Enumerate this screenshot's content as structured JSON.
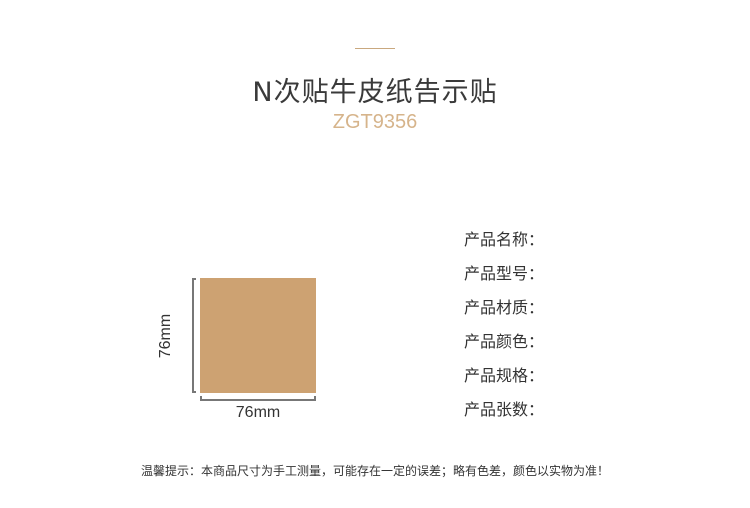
{
  "header": {
    "title": "N次贴牛皮纸告示贴",
    "model": "ZGT9356"
  },
  "product": {
    "color": "#cda272",
    "width_label": "76mm",
    "height_label": "76mm"
  },
  "specs": [
    "产品名称：",
    "产品型号：",
    "产品材质：",
    "产品颜色：",
    "产品规格：",
    "产品张数："
  ],
  "footer": {
    "note": "温馨提示：本商品尺寸为手工测量，可能存在一定的误差；略有色差，颜色以实物为准！"
  }
}
